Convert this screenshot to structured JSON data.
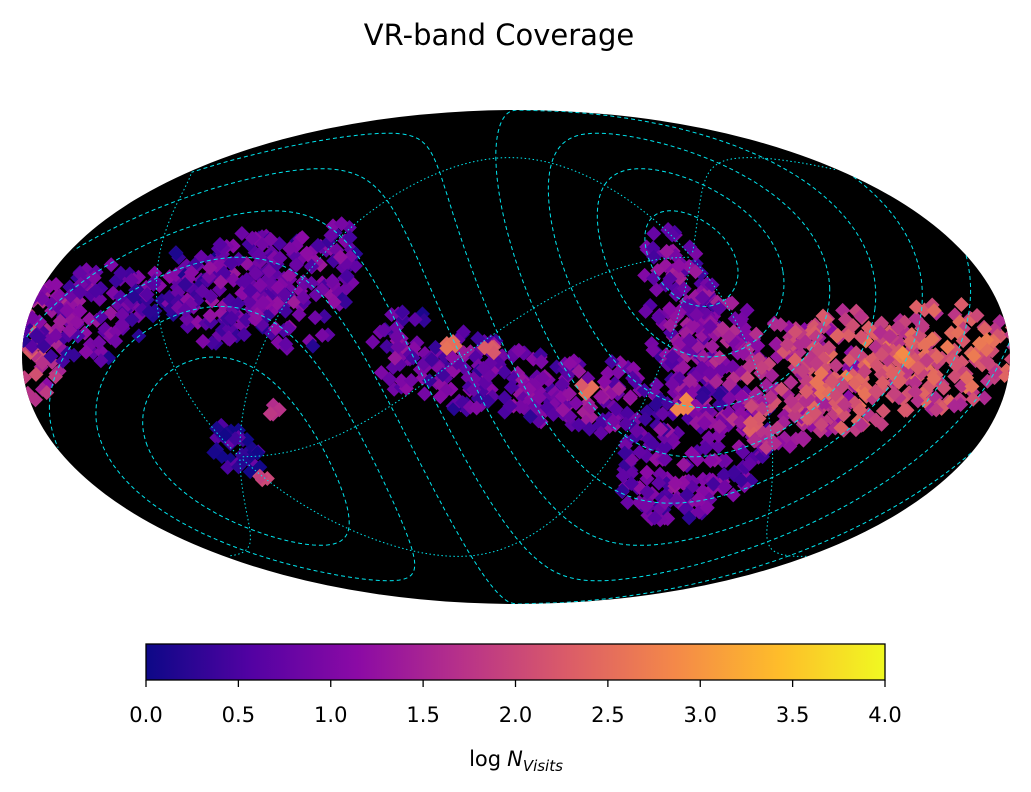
{
  "chart_data": {
    "type": "heatmap",
    "projection": "mollweide",
    "title": "VR-band Coverage",
    "colorbar": {
      "colormap": "plasma",
      "label_prefix": "log",
      "label_symbol": "N",
      "label_subscript": "Visits",
      "range": [
        0.0,
        4.0
      ],
      "ticks": [
        "0.0",
        "0.5",
        "1.0",
        "1.5",
        "2.0",
        "2.5",
        "3.0",
        "3.5",
        "4.0"
      ],
      "orientation": "horizontal",
      "placement": "bottom"
    },
    "background": "#000000",
    "grid_color": "#00e5ee",
    "colormap_stops": [
      "#0d0887",
      "#5302a3",
      "#8b0aa5",
      "#b83289",
      "#db5c68",
      "#f48849",
      "#febd2a",
      "#f0f921"
    ],
    "coverage_regions": [
      {
        "lon": 180,
        "lat": 5,
        "w": 16,
        "h": 18,
        "value": 1.9
      },
      {
        "lon": 160,
        "lat": 13,
        "w": 26,
        "h": 15,
        "value": 1.0
      },
      {
        "lon": 132,
        "lat": 22,
        "w": 18,
        "h": 10,
        "value": 0.8
      },
      {
        "lon": 110,
        "lat": 22,
        "w": 18,
        "h": 18,
        "value": 1.0
      },
      {
        "lon": 80,
        "lat": 22,
        "w": 18,
        "h": 20,
        "value": 1.0
      },
      {
        "lon": 96,
        "lat": 16,
        "w": 12,
        "h": 10,
        "value": 0.9
      },
      {
        "lon": 40,
        "lat": 0,
        "w": 14,
        "h": 14,
        "value": 0.9
      },
      {
        "lon": 18,
        "lat": -4,
        "w": 16,
        "h": 12,
        "value": 1.0
      },
      {
        "lon": -2,
        "lat": -8,
        "w": 18,
        "h": 10,
        "value": 1.0
      },
      {
        "lon": -28,
        "lat": -12,
        "w": 26,
        "h": 12,
        "value": 1.1
      },
      {
        "lon": -62,
        "lat": 14,
        "w": 14,
        "h": 26,
        "value": 1.1
      },
      {
        "lon": -74,
        "lat": 0,
        "w": 18,
        "h": 22,
        "value": 1.3
      },
      {
        "lon": -72,
        "lat": -30,
        "w": 30,
        "h": 22,
        "value": 1.0
      },
      {
        "lon": -102,
        "lat": -8,
        "w": 24,
        "h": 20,
        "value": 1.8
      },
      {
        "lon": -125,
        "lat": -4,
        "w": 30,
        "h": 18,
        "value": 2.3
      },
      {
        "lon": -160,
        "lat": 0,
        "w": 30,
        "h": 16,
        "value": 2.3
      },
      {
        "lon": 110,
        "lat": -28,
        "w": 10,
        "h": 8,
        "value": 0.5
      }
    ],
    "hot_spots": [
      {
        "lon": 24,
        "lat": 3,
        "value": 2.5
      },
      {
        "lon": 10,
        "lat": 3,
        "value": 2.2
      },
      {
        "lon": -26,
        "lat": -10,
        "value": 2.4
      },
      {
        "lon": -62,
        "lat": -14,
        "value": 2.7
      },
      {
        "lon": -90,
        "lat": -20,
        "value": 2.3
      },
      {
        "lon": -142,
        "lat": 0,
        "value": 2.8
      },
      {
        "lon": -170,
        "lat": 4,
        "value": 2.6
      },
      {
        "lon": 105,
        "lat": -36,
        "value": 2.0
      },
      {
        "lon": 90,
        "lat": -16,
        "value": 1.7
      }
    ],
    "gridlines": {
      "ecliptic_latitudes": [
        -60,
        -45,
        -30,
        -15,
        0,
        15,
        30,
        45,
        60,
        75
      ],
      "ecliptic_longitudes": [
        -120,
        -60,
        0,
        60,
        120
      ],
      "style_latitudes": "dashed",
      "style_longitudes": "dotted"
    }
  }
}
